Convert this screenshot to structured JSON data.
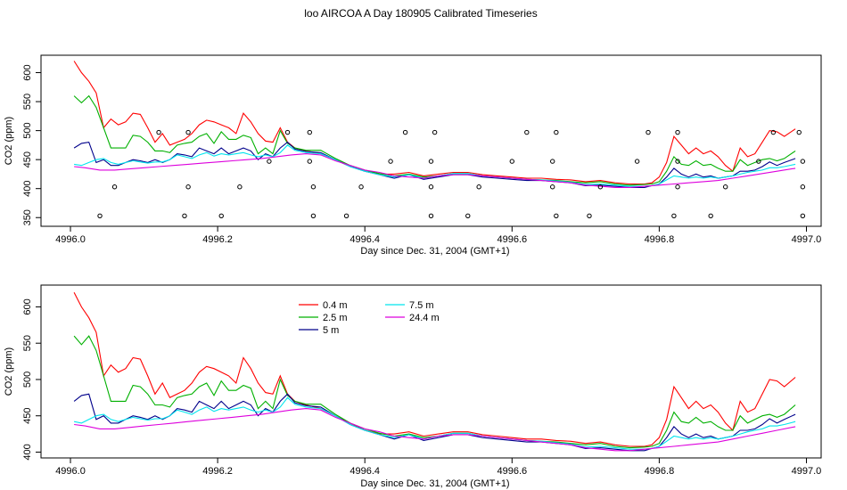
{
  "title": "loo AIRCOA A  Day 180905  Calibrated Timeseries",
  "chart_data": [
    {
      "type": "line",
      "title": "",
      "xlabel": "Day since Dec. 31, 2004 (GMT+1)",
      "ylabel": "CO2 (ppm)",
      "xlim": [
        4995.96,
        4997.02
      ],
      "ylim": [
        335,
        630
      ],
      "xticks": [
        4996.0,
        4996.2,
        4996.4,
        4996.6,
        4996.8,
        4997.0
      ],
      "xtick_labels": [
        "4996.0",
        "4996.2",
        "4996.4",
        "4996.6",
        "4996.8",
        "4997.0"
      ],
      "yticks": [
        350,
        400,
        450,
        500,
        550,
        600
      ],
      "ytick_labels": [
        "350",
        "400",
        "450",
        "500",
        "550",
        "600"
      ],
      "grid": false,
      "series": [
        {
          "color": "#ff0000",
          "x": [
            4996.005,
            4996.015,
            4996.025,
            4996.035,
            4996.045,
            4996.055,
            4996.065,
            4996.075,
            4996.085,
            4996.095,
            4996.105,
            4996.115,
            4996.125,
            4996.135,
            4996.145,
            4996.155,
            4996.165,
            4996.175,
            4996.185,
            4996.195,
            4996.205,
            4996.215,
            4996.225,
            4996.235,
            4996.245,
            4996.255,
            4996.265,
            4996.275,
            4996.285,
            4996.295,
            4996.305,
            4996.32,
            4996.34,
            4996.36,
            4996.38,
            4996.4,
            4996.42,
            4996.44,
            4996.46,
            4996.48,
            4996.5,
            4996.52,
            4996.54,
            4996.56,
            4996.58,
            4996.6,
            4996.62,
            4996.64,
            4996.66,
            4996.68,
            4996.7,
            4996.72,
            4996.74,
            4996.76,
            4996.78,
            4996.79,
            4996.8,
            4996.81,
            4996.82,
            4996.83,
            4996.84,
            4996.85,
            4996.86,
            4996.87,
            4996.88,
            4996.89,
            4996.9,
            4996.91,
            4996.92,
            4996.93,
            4996.94,
            4996.95,
            4996.96,
            4996.97,
            4996.985
          ],
          "y": [
            620,
            600,
            585,
            565,
            505,
            520,
            510,
            515,
            530,
            528,
            505,
            480,
            495,
            475,
            480,
            485,
            495,
            510,
            518,
            515,
            510,
            505,
            495,
            530,
            515,
            495,
            482,
            480,
            505,
            480,
            470,
            465,
            460,
            450,
            440,
            430,
            425,
            425,
            428,
            422,
            425,
            428,
            428,
            424,
            422,
            420,
            418,
            418,
            416,
            415,
            412,
            414,
            410,
            408,
            408,
            410,
            420,
            445,
            490,
            475,
            460,
            470,
            460,
            465,
            455,
            440,
            430,
            470,
            455,
            460,
            480,
            500,
            498,
            490,
            503
          ]
        },
        {
          "color": "#00b000",
          "x": [
            4996.005,
            4996.015,
            4996.025,
            4996.035,
            4996.045,
            4996.055,
            4996.065,
            4996.075,
            4996.085,
            4996.095,
            4996.105,
            4996.115,
            4996.125,
            4996.135,
            4996.145,
            4996.155,
            4996.165,
            4996.175,
            4996.185,
            4996.195,
            4996.205,
            4996.215,
            4996.225,
            4996.235,
            4996.245,
            4996.255,
            4996.265,
            4996.275,
            4996.285,
            4996.295,
            4996.305,
            4996.32,
            4996.34,
            4996.36,
            4996.38,
            4996.4,
            4996.42,
            4996.44,
            4996.46,
            4996.48,
            4996.5,
            4996.52,
            4996.54,
            4996.56,
            4996.58,
            4996.6,
            4996.62,
            4996.64,
            4996.66,
            4996.68,
            4996.7,
            4996.72,
            4996.74,
            4996.76,
            4996.78,
            4996.79,
            4996.8,
            4996.81,
            4996.82,
            4996.83,
            4996.84,
            4996.85,
            4996.86,
            4996.87,
            4996.88,
            4996.89,
            4996.9,
            4996.91,
            4996.92,
            4996.93,
            4996.94,
            4996.95,
            4996.96,
            4996.97,
            4996.985
          ],
          "y": [
            560,
            548,
            560,
            540,
            505,
            470,
            470,
            470,
            492,
            490,
            480,
            465,
            465,
            462,
            475,
            478,
            480,
            490,
            495,
            478,
            498,
            485,
            485,
            492,
            488,
            460,
            470,
            460,
            500,
            478,
            470,
            466,
            466,
            452,
            440,
            432,
            426,
            422,
            425,
            420,
            422,
            426,
            426,
            422,
            420,
            418,
            416,
            415,
            414,
            412,
            410,
            412,
            408,
            406,
            407,
            408,
            412,
            430,
            455,
            442,
            440,
            448,
            440,
            442,
            435,
            430,
            430,
            450,
            440,
            445,
            450,
            452,
            448,
            452,
            465
          ]
        },
        {
          "color": "#00008b",
          "x": [
            4996.005,
            4996.015,
            4996.025,
            4996.035,
            4996.045,
            4996.055,
            4996.065,
            4996.075,
            4996.085,
            4996.095,
            4996.105,
            4996.115,
            4996.125,
            4996.135,
            4996.145,
            4996.155,
            4996.165,
            4996.175,
            4996.185,
            4996.195,
            4996.205,
            4996.215,
            4996.225,
            4996.235,
            4996.245,
            4996.255,
            4996.265,
            4996.275,
            4996.285,
            4996.295,
            4996.305,
            4996.32,
            4996.34,
            4996.36,
            4996.38,
            4996.4,
            4996.42,
            4996.44,
            4996.46,
            4996.48,
            4996.5,
            4996.52,
            4996.54,
            4996.56,
            4996.58,
            4996.6,
            4996.62,
            4996.64,
            4996.66,
            4996.68,
            4996.7,
            4996.72,
            4996.74,
            4996.76,
            4996.78,
            4996.79,
            4996.8,
            4996.81,
            4996.82,
            4996.83,
            4996.84,
            4996.85,
            4996.86,
            4996.87,
            4996.88,
            4996.89,
            4996.9,
            4996.91,
            4996.92,
            4996.93,
            4996.94,
            4996.95,
            4996.96,
            4996.97,
            4996.985
          ],
          "y": [
            470,
            478,
            480,
            445,
            450,
            440,
            440,
            445,
            450,
            448,
            445,
            450,
            445,
            450,
            460,
            458,
            455,
            470,
            465,
            460,
            470,
            460,
            465,
            470,
            465,
            450,
            460,
            455,
            470,
            480,
            468,
            464,
            462,
            450,
            438,
            430,
            424,
            418,
            424,
            416,
            420,
            424,
            424,
            420,
            418,
            416,
            414,
            414,
            412,
            410,
            405,
            406,
            404,
            402,
            402,
            405,
            408,
            420,
            435,
            425,
            420,
            425,
            420,
            422,
            418,
            420,
            422,
            430,
            430,
            432,
            438,
            446,
            440,
            445,
            452
          ]
        },
        {
          "color": "#00e5ee",
          "x": [
            4996.005,
            4996.015,
            4996.025,
            4996.035,
            4996.045,
            4996.055,
            4996.065,
            4996.075,
            4996.085,
            4996.095,
            4996.105,
            4996.115,
            4996.125,
            4996.135,
            4996.145,
            4996.155,
            4996.165,
            4996.175,
            4996.185,
            4996.195,
            4996.205,
            4996.215,
            4996.225,
            4996.235,
            4996.245,
            4996.255,
            4996.265,
            4996.275,
            4996.285,
            4996.295,
            4996.305,
            4996.32,
            4996.34,
            4996.36,
            4996.38,
            4996.4,
            4996.42,
            4996.44,
            4996.46,
            4996.48,
            4996.5,
            4996.52,
            4996.54,
            4996.56,
            4996.58,
            4996.6,
            4996.62,
            4996.64,
            4996.66,
            4996.68,
            4996.7,
            4996.72,
            4996.74,
            4996.76,
            4996.78,
            4996.79,
            4996.8,
            4996.81,
            4996.82,
            4996.83,
            4996.84,
            4996.85,
            4996.86,
            4996.87,
            4996.88,
            4996.89,
            4996.9,
            4996.91,
            4996.92,
            4996.93,
            4996.94,
            4996.95,
            4996.96,
            4996.97,
            4996.985
          ],
          "y": [
            442,
            440,
            445,
            450,
            452,
            445,
            442,
            445,
            448,
            446,
            444,
            446,
            446,
            450,
            458,
            455,
            452,
            458,
            462,
            456,
            460,
            458,
            460,
            462,
            458,
            455,
            458,
            455,
            462,
            475,
            466,
            462,
            460,
            450,
            438,
            430,
            424,
            420,
            424,
            418,
            422,
            426,
            426,
            422,
            420,
            418,
            416,
            415,
            413,
            411,
            407,
            408,
            406,
            404,
            404,
            405,
            408,
            415,
            422,
            420,
            418,
            420,
            418,
            420,
            418,
            420,
            422,
            425,
            428,
            430,
            432,
            436,
            436,
            438,
            442
          ]
        },
        {
          "color": "#dd00dd",
          "x": [
            4996.005,
            4996.02,
            4996.04,
            4996.06,
            4996.08,
            4996.1,
            4996.12,
            4996.14,
            4996.16,
            4996.18,
            4996.2,
            4996.22,
            4996.24,
            4996.26,
            4996.28,
            4996.3,
            4996.32,
            4996.34,
            4996.36,
            4996.38,
            4996.4,
            4996.42,
            4996.44,
            4996.46,
            4996.48,
            4996.5,
            4996.52,
            4996.54,
            4996.56,
            4996.58,
            4996.6,
            4996.62,
            4996.64,
            4996.66,
            4996.68,
            4996.7,
            4996.72,
            4996.74,
            4996.76,
            4996.78,
            4996.8,
            4996.82,
            4996.84,
            4996.86,
            4996.88,
            4996.9,
            4996.92,
            4996.94,
            4996.96,
            4996.985
          ],
          "y": [
            438,
            436,
            432,
            432,
            434,
            436,
            438,
            440,
            442,
            444,
            446,
            448,
            450,
            452,
            455,
            458,
            460,
            458,
            448,
            440,
            432,
            428,
            422,
            420,
            418,
            422,
            424,
            424,
            422,
            420,
            418,
            416,
            414,
            412,
            410,
            406,
            404,
            402,
            402,
            404,
            406,
            408,
            410,
            412,
            414,
            418,
            422,
            426,
            430,
            435
          ]
        }
      ],
      "points": {
        "x": [
          4996.04,
          4996.06,
          4996.12,
          4996.155,
          4996.16,
          4996.16,
          4996.205,
          4996.23,
          4996.27,
          4996.295,
          4996.325,
          4996.325,
          4996.33,
          4996.33,
          4996.375,
          4996.395,
          4996.435,
          4996.455,
          4996.49,
          4996.49,
          4996.49,
          4996.495,
          4996.54,
          4996.555,
          4996.6,
          4996.62,
          4996.655,
          4996.655,
          4996.66,
          4996.66,
          4996.705,
          4996.72,
          4996.77,
          4996.785,
          4996.82,
          4996.825,
          4996.825,
          4996.825,
          4996.87,
          4996.89,
          4996.935,
          4996.955,
          4996.99,
          4996.995,
          4996.995,
          4996.995
        ],
        "y": [
          353,
          403,
          497,
          353,
          403,
          497,
          353,
          403,
          447,
          497,
          447,
          497,
          403,
          353,
          353,
          403,
          447,
          497,
          353,
          403,
          447,
          497,
          353,
          403,
          447,
          497,
          403,
          447,
          497,
          353,
          353,
          403,
          447,
          497,
          353,
          403,
          447,
          497,
          353,
          403,
          447,
          497,
          497,
          447,
          403,
          353
        ]
      }
    },
    {
      "type": "line",
      "title": "",
      "xlabel": "Day since Dec. 31, 2004 (GMT+1)",
      "ylabel": "CO2 (ppm)",
      "xlim": [
        4995.96,
        4997.02
      ],
      "ylim": [
        392,
        630
      ],
      "xticks": [
        4996.0,
        4996.2,
        4996.4,
        4996.6,
        4996.8,
        4997.0
      ],
      "xtick_labels": [
        "4996.0",
        "4996.2",
        "4996.4",
        "4996.6",
        "4996.8",
        "4997.0"
      ],
      "yticks": [
        400,
        450,
        500,
        550,
        600
      ],
      "ytick_labels": [
        "400",
        "450",
        "500",
        "550",
        "600"
      ],
      "grid": false,
      "legend": {
        "placement": "top-center",
        "entries": [
          {
            "name": "0.4 m",
            "color": "#ff0000"
          },
          {
            "name": "7.5 m",
            "color": "#00e5ee"
          },
          {
            "name": "2.5 m",
            "color": "#00b000"
          },
          {
            "name": "24.4 m",
            "color": "#dd00dd"
          },
          {
            "name": "5 m",
            "color": "#00008b"
          }
        ]
      },
      "series_ref": "same data as panel 1 lines",
      "series_names": [
        "0.4 m",
        "2.5 m",
        "5 m",
        "7.5 m",
        "24.4 m"
      ]
    }
  ]
}
